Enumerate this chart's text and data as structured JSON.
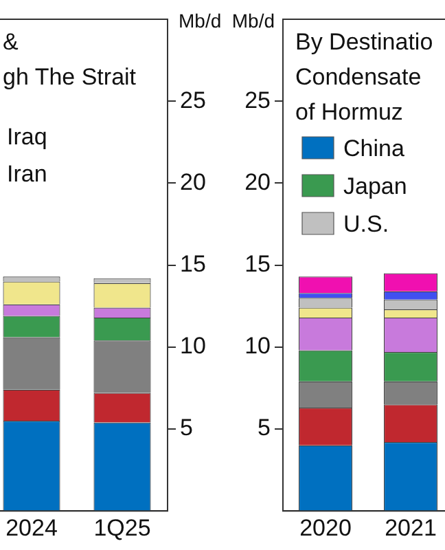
{
  "chart_data": [
    {
      "type": "bar",
      "title": "&\ngh The Strait",
      "ylabel": "Mb/d",
      "categories": [
        "2024",
        "1Q25"
      ],
      "stacked": true,
      "ylim": [
        0,
        30
      ],
      "yticks": [
        5,
        10,
        15,
        20,
        25
      ],
      "grid": false,
      "legend": false,
      "annotations": [
        "Iraq",
        "Iran"
      ],
      "series": [
        {
          "color": "#0070c0",
          "values": [
            5.5,
            5.4
          ]
        },
        {
          "color": "#c0282f",
          "values": [
            1.9,
            1.8
          ]
        },
        {
          "color": "#808080",
          "values": [
            3.2,
            3.2
          ]
        },
        {
          "color": "#3a9a50",
          "values": [
            1.3,
            1.4
          ]
        },
        {
          "color": "#c87adc",
          "values": [
            0.7,
            0.6
          ]
        },
        {
          "color": "#f0e68c",
          "values": [
            1.4,
            1.5
          ]
        },
        {
          "color": "#c0c0c0",
          "values": [
            0.3,
            0.3
          ]
        }
      ]
    },
    {
      "type": "bar",
      "title": "By Destinatio\nCondensate\nof Hormuz",
      "ylabel": "Mb/d",
      "categories": [
        "2020",
        "2021"
      ],
      "stacked": true,
      "ylim": [
        0,
        30
      ],
      "yticks": [
        5,
        10,
        15,
        20,
        25
      ],
      "grid": false,
      "legend": "top left",
      "series": [
        {
          "name": "China",
          "color": "#0070c0",
          "values": [
            4.0,
            4.2
          ]
        },
        {
          "color": "#c0282f",
          "values": [
            2.3,
            2.3
          ]
        },
        {
          "color": "#808080",
          "values": [
            1.6,
            1.4
          ]
        },
        {
          "name": "Japan",
          "color": "#3a9a50",
          "values": [
            1.9,
            1.8
          ]
        },
        {
          "color": "#c87adc",
          "values": [
            2.0,
            2.1
          ]
        },
        {
          "color": "#f0e68c",
          "values": [
            0.6,
            0.5
          ]
        },
        {
          "name": "U.S.",
          "color": "#c0c0c0",
          "values": [
            0.6,
            0.6
          ]
        },
        {
          "color": "#4050f0",
          "values": [
            0.3,
            0.5
          ]
        },
        {
          "color": "#f010b0",
          "values": [
            1.0,
            1.1
          ]
        }
      ]
    }
  ]
}
